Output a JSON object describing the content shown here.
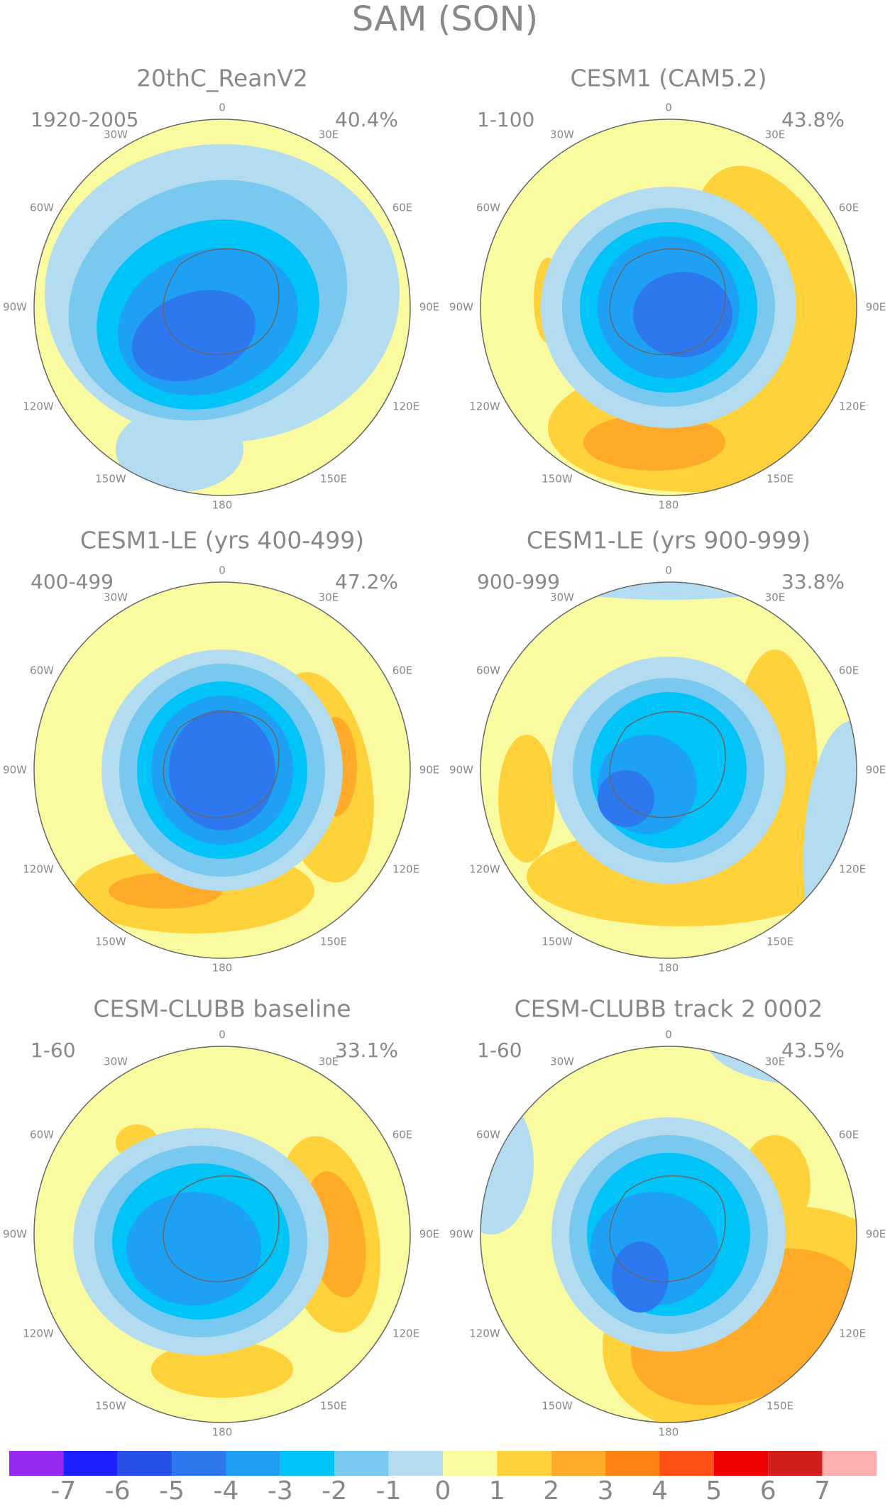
{
  "title": "SAM (SON)",
  "panels": [
    {
      "title": "20thC_ReanV2",
      "period": "1920-2005",
      "variance": "40.4%"
    },
    {
      "title": "CESM1 (CAM5.2)",
      "period": "1-100",
      "variance": "43.8%"
    },
    {
      "title": "CESM1-LE (yrs 400-499)",
      "period": "400-499",
      "variance": "47.2%"
    },
    {
      "title": "CESM1-LE (yrs 900-999)",
      "period": "900-999",
      "variance": "33.8%"
    },
    {
      "title": "CESM-CLUBB baseline",
      "period": "1-60",
      "variance": "33.1%"
    },
    {
      "title": "CESM-CLUBB track 2 0002",
      "period": "1-60",
      "variance": "43.5%"
    }
  ],
  "longitude_labels": [
    "0",
    "30E",
    "60E",
    "90E",
    "120E",
    "150E",
    "180",
    "150W",
    "120W",
    "90W",
    "60W",
    "30W"
  ],
  "colorbar": {
    "colors": [
      "#9628f0",
      "#1e1eff",
      "#2850e6",
      "#2d78ee",
      "#1ea0f5",
      "#00c3f8",
      "#78c8f0",
      "#b4dcf0",
      "#fafaa0",
      "#ffd23c",
      "#ffaa28",
      "#ff8214",
      "#ff5014",
      "#ee0000",
      "#d21e1e",
      "#ffafaf"
    ],
    "ticks": [
      -7,
      -6,
      -5,
      -4,
      -3,
      -2,
      -1,
      0,
      1,
      2,
      3,
      4,
      5,
      6,
      7
    ]
  }
}
